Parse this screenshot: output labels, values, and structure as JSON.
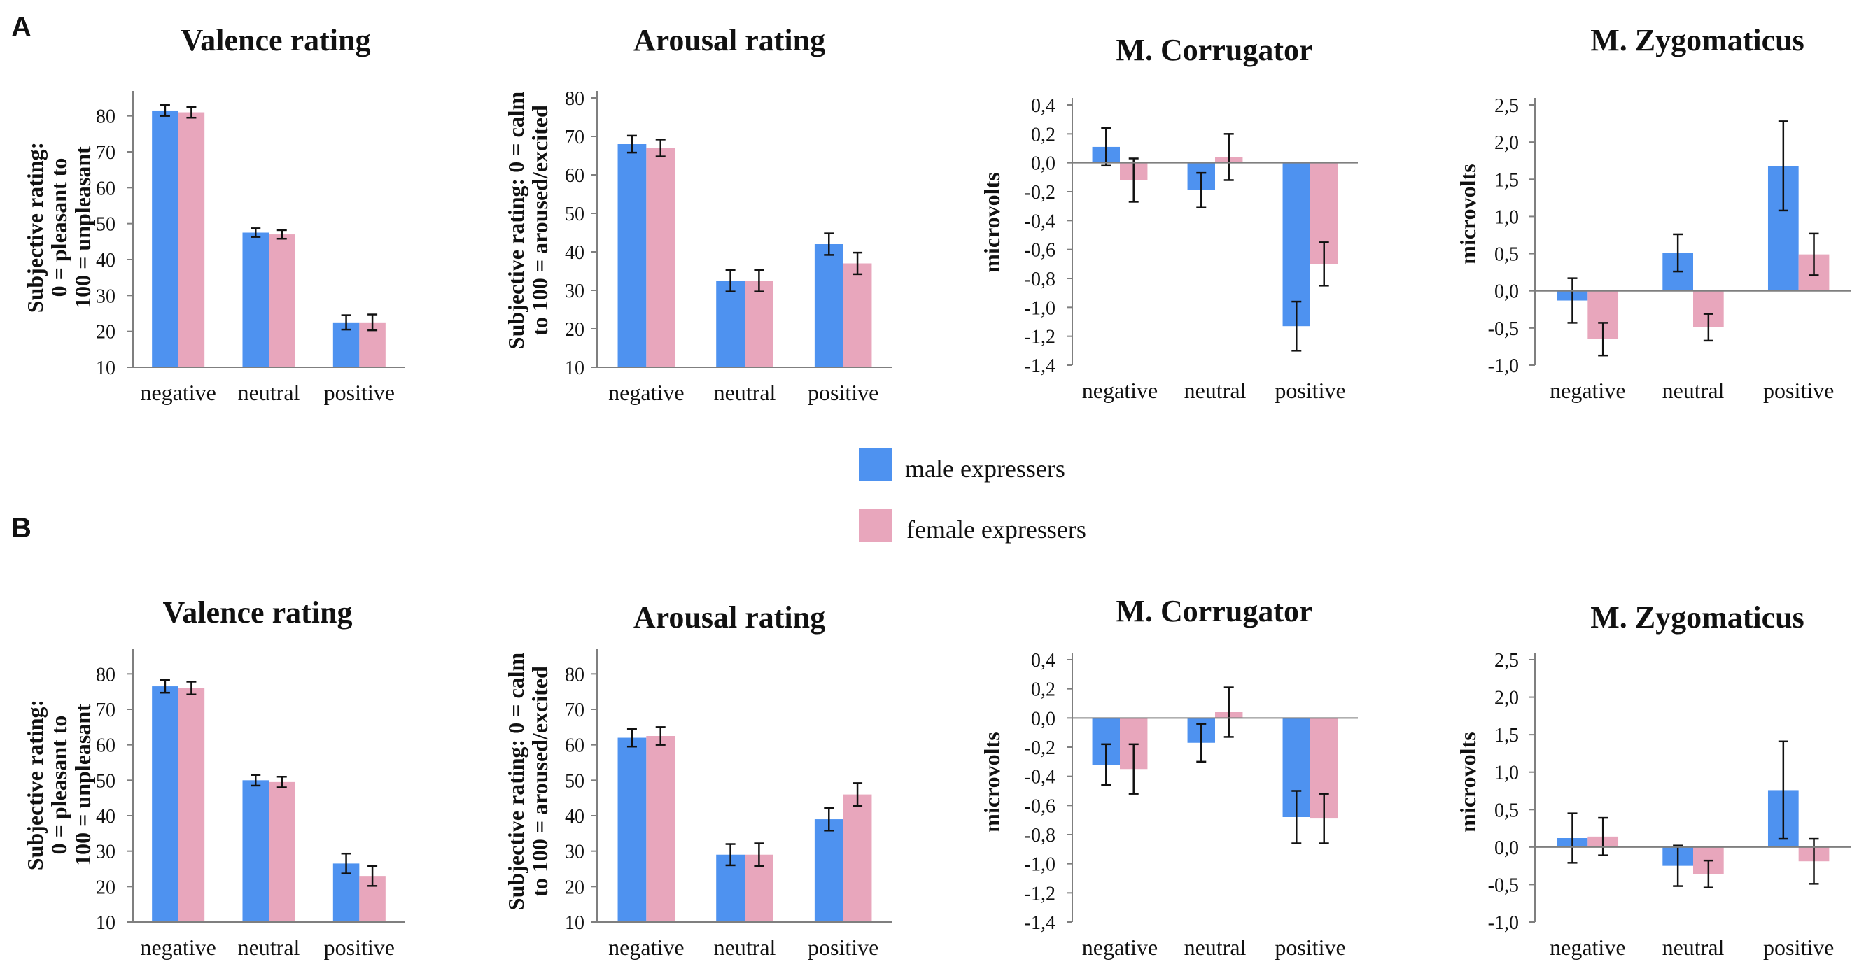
{
  "panels": [
    {
      "label": "A"
    },
    {
      "label": "B"
    }
  ],
  "legend": [
    {
      "label": "male expressers",
      "color": "#4E92F0"
    },
    {
      "label": "female expressers",
      "color": "#E8A6BC"
    }
  ],
  "chart_data": [
    {
      "panel": "A",
      "type": "bar",
      "title": "Valence rating",
      "ylabel_lines": [
        "Subjective rating:",
        "0 = pleasant to",
        "100 = unpleasant"
      ],
      "categories": [
        "negative",
        "neutral",
        "positive"
      ],
      "ylim": [
        10,
        85
      ],
      "yticks": [
        10,
        20,
        30,
        40,
        50,
        60,
        70,
        80
      ],
      "ytick_labels": [
        "10",
        "20",
        "30",
        "40",
        "50",
        "60",
        "70",
        "80"
      ],
      "series": [
        {
          "name": "male expressers",
          "values": [
            81.5,
            47.5,
            22.5
          ],
          "errors": [
            1.5,
            1.2,
            2.0
          ]
        },
        {
          "name": "female expressers",
          "values": [
            81.0,
            47.0,
            22.5
          ],
          "errors": [
            1.5,
            1.2,
            2.2
          ]
        }
      ]
    },
    {
      "panel": "A",
      "type": "bar",
      "title": "Arousal rating",
      "ylabel_lines": [
        "Subjective rating: 0 = calm",
        "to 100 = aroused/excited"
      ],
      "categories": [
        "negative",
        "neutral",
        "positive"
      ],
      "ylim": [
        10,
        80
      ],
      "yticks": [
        10,
        20,
        30,
        40,
        50,
        60,
        70,
        80
      ],
      "ytick_labels": [
        "10",
        "20",
        "30",
        "40",
        "50",
        "60",
        "70",
        "80"
      ],
      "series": [
        {
          "name": "male expressers",
          "values": [
            68.0,
            32.5,
            42.0
          ],
          "errors": [
            2.2,
            2.8,
            2.8
          ]
        },
        {
          "name": "female expressers",
          "values": [
            67.0,
            32.5,
            37.0
          ],
          "errors": [
            2.2,
            2.8,
            2.8
          ]
        }
      ]
    },
    {
      "panel": "A",
      "type": "bar",
      "title": "M. Corrugator",
      "ylabel_lines": [
        "microvolts"
      ],
      "categories": [
        "negative",
        "neutral",
        "positive"
      ],
      "ylim": [
        -1.4,
        0.4
      ],
      "yticks": [
        -1.4,
        -1.2,
        -1.0,
        -0.8,
        -0.6,
        -0.4,
        -0.2,
        0.0,
        0.2,
        0.4
      ],
      "ytick_labels": [
        "-1,4",
        "-1,2",
        "-1,0",
        "-0,8",
        "-0,6",
        "-0,4",
        "-0,2",
        "0,0",
        "0,2",
        "0,4"
      ],
      "series": [
        {
          "name": "male expressers",
          "values": [
            0.11,
            -0.19,
            -1.13
          ],
          "errors": [
            0.13,
            0.12,
            0.17
          ]
        },
        {
          "name": "female expressers",
          "values": [
            -0.12,
            0.04,
            -0.7
          ],
          "errors": [
            0.15,
            0.16,
            0.15
          ]
        }
      ]
    },
    {
      "panel": "A",
      "type": "bar",
      "title": "M. Zygomaticus",
      "ylabel_lines": [
        "microvolts"
      ],
      "categories": [
        "negative",
        "neutral",
        "positive"
      ],
      "ylim": [
        -1.0,
        2.5
      ],
      "yticks": [
        -1.0,
        -0.5,
        0.0,
        0.5,
        1.0,
        1.5,
        2.0,
        2.5
      ],
      "ytick_labels": [
        "-1,0",
        "-0,5",
        "0,0",
        "0,5",
        "1,0",
        "1,5",
        "2,0",
        "2,5"
      ],
      "series": [
        {
          "name": "male expressers",
          "values": [
            -0.13,
            0.51,
            1.68
          ],
          "errors": [
            0.3,
            0.25,
            0.6
          ]
        },
        {
          "name": "female expressers",
          "values": [
            -0.65,
            -0.49,
            0.49
          ],
          "errors": [
            0.22,
            0.18,
            0.28
          ]
        }
      ]
    },
    {
      "panel": "B",
      "type": "bar",
      "title": "Valence rating",
      "ylabel_lines": [
        "Subjective rating:",
        "0 = pleasant to",
        "100 = unpleasant"
      ],
      "categories": [
        "negative",
        "neutral",
        "positive"
      ],
      "ylim": [
        10,
        85
      ],
      "yticks": [
        10,
        20,
        30,
        40,
        50,
        60,
        70,
        80
      ],
      "ytick_labels": [
        "10",
        "20",
        "30",
        "40",
        "50",
        "60",
        "70",
        "80"
      ],
      "series": [
        {
          "name": "male expressers",
          "values": [
            76.5,
            50.0,
            26.5
          ],
          "errors": [
            1.8,
            1.5,
            2.8
          ]
        },
        {
          "name": "female expressers",
          "values": [
            76.0,
            49.5,
            23.0
          ],
          "errors": [
            1.8,
            1.5,
            2.8
          ]
        }
      ]
    },
    {
      "panel": "B",
      "type": "bar",
      "title": "Arousal rating",
      "ylabel_lines": [
        "Subjective rating: 0 = calm",
        "to 100 = aroused/excited"
      ],
      "categories": [
        "negative",
        "neutral",
        "positive"
      ],
      "ylim": [
        10,
        85
      ],
      "yticks": [
        10,
        20,
        30,
        40,
        50,
        60,
        70,
        80
      ],
      "ytick_labels": [
        "10",
        "20",
        "30",
        "40",
        "50",
        "60",
        "70",
        "80"
      ],
      "series": [
        {
          "name": "male expressers",
          "values": [
            62.0,
            29.0,
            39.0
          ],
          "errors": [
            2.5,
            3.0,
            3.2
          ]
        },
        {
          "name": "female expressers",
          "values": [
            62.5,
            29.0,
            46.0
          ],
          "errors": [
            2.5,
            3.2,
            3.2
          ]
        }
      ]
    },
    {
      "panel": "B",
      "type": "bar",
      "title": "M. Corrugator",
      "ylabel_lines": [
        "microvolts"
      ],
      "categories": [
        "negative",
        "neutral",
        "positive"
      ],
      "ylim": [
        -1.4,
        0.4
      ],
      "yticks": [
        -1.4,
        -1.2,
        -1.0,
        -0.8,
        -0.6,
        -0.4,
        -0.2,
        0.0,
        0.2,
        0.4
      ],
      "ytick_labels": [
        "-1,4",
        "-1,2",
        "-1,0",
        "-0,8",
        "-0,6",
        "-0,4",
        "-0,2",
        "0,0",
        "0,2",
        "0,4"
      ],
      "series": [
        {
          "name": "male expressers",
          "values": [
            -0.32,
            -0.17,
            -0.68
          ],
          "errors": [
            0.14,
            0.13,
            0.18
          ]
        },
        {
          "name": "female expressers",
          "values": [
            -0.35,
            0.04,
            -0.69
          ],
          "errors": [
            0.17,
            0.17,
            0.17
          ]
        }
      ]
    },
    {
      "panel": "B",
      "type": "bar",
      "title": "M. Zygomaticus",
      "ylabel_lines": [
        "microvolts"
      ],
      "categories": [
        "negative",
        "neutral",
        "positive"
      ],
      "ylim": [
        -1.0,
        2.5
      ],
      "yticks": [
        -1.0,
        -0.5,
        0.0,
        0.5,
        1.0,
        1.5,
        2.0,
        2.5
      ],
      "ytick_labels": [
        "-1,0",
        "-0,5",
        "0,0",
        "0,5",
        "1,0",
        "1,5",
        "2,0",
        "2,5"
      ],
      "series": [
        {
          "name": "male expressers",
          "values": [
            0.12,
            -0.25,
            0.76
          ],
          "errors": [
            0.33,
            0.27,
            0.65
          ]
        },
        {
          "name": "female expressers",
          "values": [
            0.14,
            -0.36,
            -0.19
          ],
          "errors": [
            0.25,
            0.18,
            0.3
          ]
        }
      ]
    }
  ]
}
